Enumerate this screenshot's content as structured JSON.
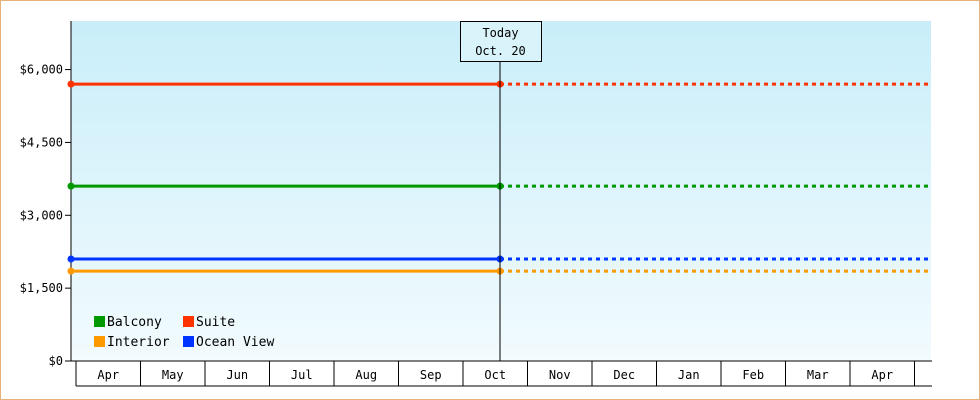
{
  "chart_data": {
    "type": "line",
    "x_axis": {
      "months": [
        "Apr",
        "May",
        "Jun",
        "Jul",
        "Aug",
        "Sep",
        "Oct",
        "Nov",
        "Dec",
        "Jan",
        "Feb",
        "Mar",
        "Apr"
      ]
    },
    "y_axis": {
      "ylim": [
        0,
        7000
      ],
      "ticks": [
        0,
        1500,
        3000,
        4500,
        6000
      ],
      "tick_labels": [
        "$0",
        "$1,500",
        "$3,000",
        "$4,500",
        "$6,000"
      ]
    },
    "today_marker": {
      "line1": "Today",
      "line2": "Oct. 20"
    },
    "series": [
      {
        "name": "Suite",
        "color": "#ff3300",
        "start": 5700,
        "today": 5700,
        "projected": 5700
      },
      {
        "name": "Balcony",
        "color": "#009900",
        "start": 3600,
        "today": 3600,
        "projected": 3600
      },
      {
        "name": "Ocean View",
        "color": "#0033ff",
        "start": 2100,
        "today": 2100,
        "projected": 2100
      },
      {
        "name": "Interior",
        "color": "#ff9900",
        "start": 1850,
        "today": 1850,
        "projected": 1850
      }
    ],
    "legend": [
      "Balcony",
      "Suite",
      "Interior",
      "Ocean View"
    ],
    "grid": false,
    "legend_placement": "bottom-left"
  },
  "colors": {
    "frame_border": "#e8b07a",
    "plot_top": "#c9eef9",
    "plot_bottom": "#f2fbfe"
  }
}
